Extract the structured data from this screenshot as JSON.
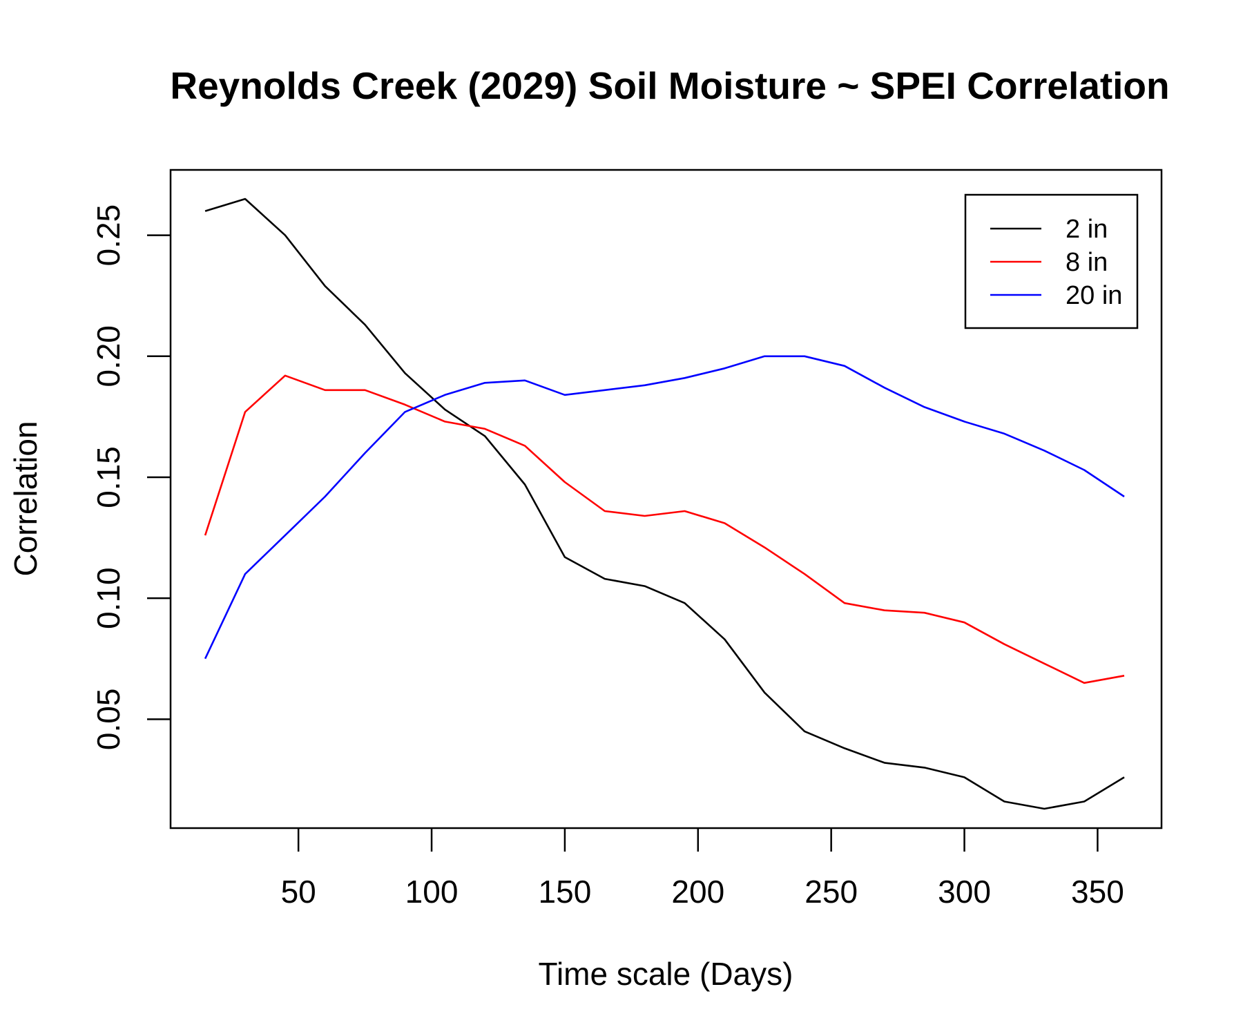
{
  "chart_data": {
    "type": "line",
    "title": "Reynolds Creek (2029) Soil Moisture ~ SPEI Correlation",
    "xlabel": "Time scale (Days)",
    "ylabel": "Correlation",
    "xlim": [
      2,
      374
    ],
    "ylim": [
      0.005,
      0.277
    ],
    "xticks": [
      50,
      100,
      150,
      200,
      250,
      300,
      350
    ],
    "xtick_labels": [
      "50",
      "100",
      "150",
      "200",
      "250",
      "300",
      "350"
    ],
    "yticks": [
      0.05,
      0.1,
      0.15,
      0.2,
      0.25
    ],
    "ytick_labels": [
      "0.05",
      "0.10",
      "0.15",
      "0.20",
      "0.25"
    ],
    "grid": false,
    "legend_position": "top-right",
    "x": [
      15,
      30,
      45,
      60,
      75,
      90,
      105,
      120,
      135,
      150,
      165,
      180,
      195,
      210,
      225,
      240,
      255,
      270,
      285,
      300,
      315,
      330,
      345,
      360
    ],
    "series": [
      {
        "name": "2 in",
        "color": "#000000",
        "values": [
          0.26,
          0.265,
          0.25,
          0.229,
          0.213,
          0.193,
          0.178,
          0.167,
          0.147,
          0.117,
          0.108,
          0.105,
          0.098,
          0.083,
          0.061,
          0.045,
          0.038,
          0.032,
          0.03,
          0.026,
          0.016,
          0.013,
          0.016,
          0.026
        ]
      },
      {
        "name": "8 in",
        "color": "#ff0000",
        "values": [
          0.126,
          0.177,
          0.192,
          0.186,
          0.186,
          0.18,
          0.173,
          0.17,
          0.163,
          0.148,
          0.136,
          0.134,
          0.136,
          0.131,
          0.121,
          0.11,
          0.098,
          0.095,
          0.094,
          0.09,
          0.081,
          0.073,
          0.065,
          0.068
        ]
      },
      {
        "name": "20 in",
        "color": "#0000ff",
        "values": [
          0.075,
          0.11,
          0.126,
          0.142,
          0.16,
          0.177,
          0.184,
          0.189,
          0.19,
          0.184,
          0.186,
          0.188,
          0.191,
          0.195,
          0.2,
          0.2,
          0.196,
          0.187,
          0.179,
          0.173,
          0.168,
          0.161,
          0.153,
          0.142
        ]
      }
    ]
  }
}
